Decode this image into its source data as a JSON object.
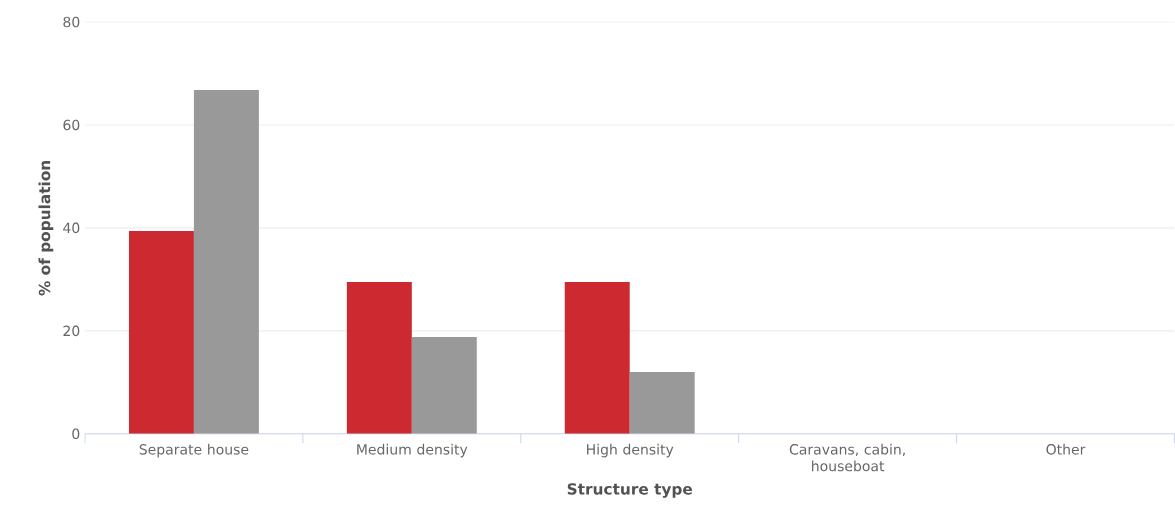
{
  "chart_data": {
    "type": "bar",
    "xlabel": "Structure type",
    "ylabel": "% of population",
    "categories": [
      "Separate house",
      "Medium density",
      "High density",
      "Caravans, cabin, houseboat",
      "Other"
    ],
    "series": [
      {
        "color": "#cc2a30",
        "values": [
          39.4,
          29.5,
          29.5,
          null,
          null
        ]
      },
      {
        "color": "#999999",
        "values": [
          66.8,
          18.8,
          12.0,
          null,
          null
        ]
      }
    ],
    "ylim": [
      0,
      80
    ],
    "yticks": [
      0,
      20,
      40,
      60,
      80
    ],
    "grid": "y"
  }
}
